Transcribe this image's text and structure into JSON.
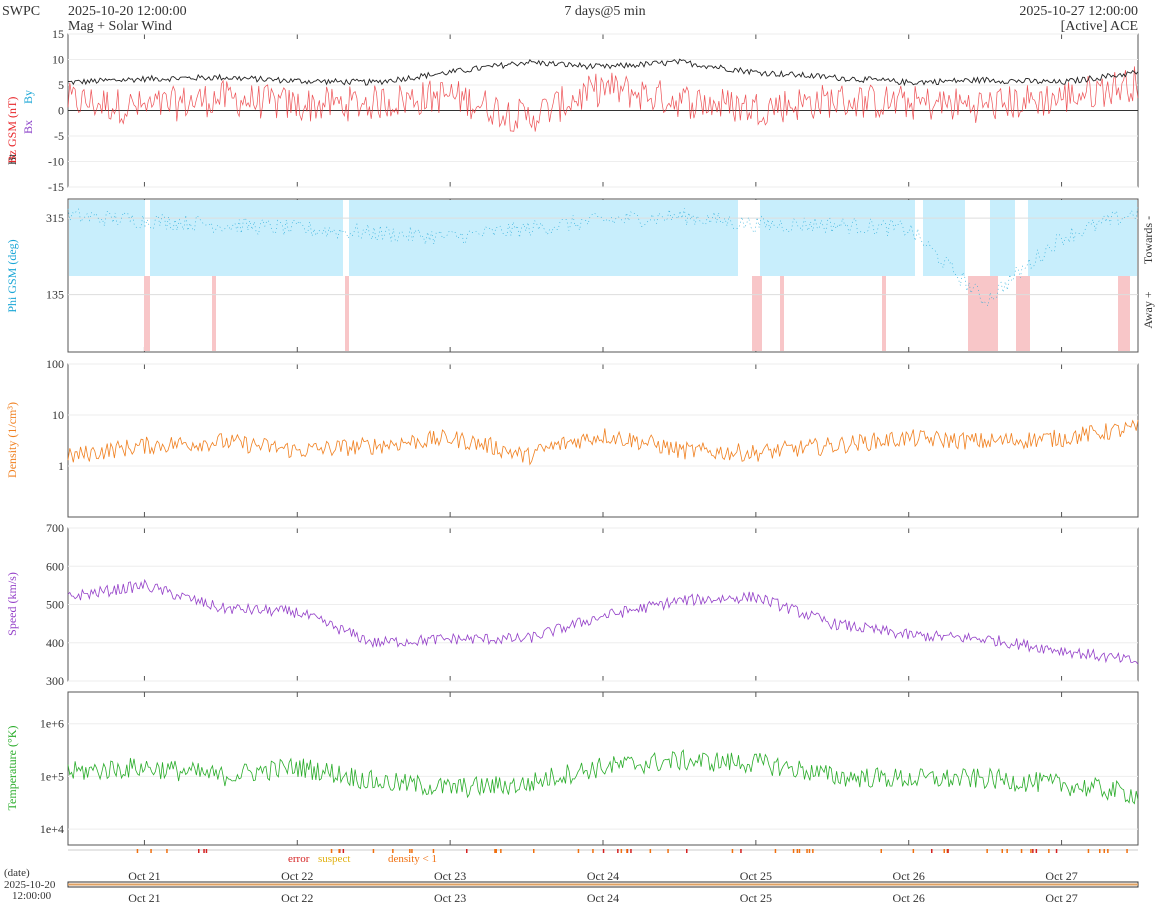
{
  "header": {
    "source": "SWPC",
    "start": "2025-10-20 12:00:00",
    "window": "7 days@5 min",
    "end": "2025-10-27 12:00:00",
    "subtitle": "Mag + Solar Wind",
    "satellite": "[Active] ACE"
  },
  "colors": {
    "bt": "#222222",
    "bz": "#e8262a",
    "by": "#1aa6d6",
    "bx": "#8a3fc8",
    "phi": "#1aa6d6",
    "towards_fill": "#c8eefc",
    "away_fill": "#f8c6c8",
    "density": "#f08020",
    "speed": "#9440c8",
    "temperature": "#2aac2a",
    "error": "#d42020",
    "suspect": "#e0c020",
    "density_lt1": "#f07010"
  },
  "x_axis": {
    "ticks": [
      "Oct 21",
      "Oct 22",
      "Oct 23",
      "Oct 24",
      "Oct 25",
      "Oct 26",
      "Oct 27"
    ],
    "date_label": "(date)",
    "start_date": "2025-10-20",
    "start_time": "12:00:00"
  },
  "legend": {
    "error": "error",
    "suspect": "suspect",
    "density": "density < 1"
  },
  "chart_data": [
    {
      "type": "line",
      "panel": "mag",
      "ylabel_bt": "Bt",
      "ylabel_bz": "Bz GSM (nT)",
      "ylabel_bx": "Bx",
      "ylabel_by": "By",
      "ylim": [
        -15,
        15
      ],
      "yticks": [
        "15",
        "10",
        "5",
        "0",
        "-5",
        "-10",
        "-15"
      ],
      "x_dates": [
        "2025-10-20 12:00",
        "2025-10-21 00:00",
        "2025-10-21 12:00",
        "2025-10-22 00:00",
        "2025-10-22 12:00",
        "2025-10-23 00:00",
        "2025-10-23 12:00",
        "2025-10-24 00:00",
        "2025-10-24 12:00",
        "2025-10-25 00:00",
        "2025-10-25 12:00",
        "2025-10-26 00:00",
        "2025-10-26 12:00",
        "2025-10-27 00:00",
        "2025-10-27 12:00"
      ],
      "series": [
        {
          "name": "Bt",
          "values": [
            5.5,
            6.2,
            6.5,
            5.8,
            5.5,
            7.5,
            9.5,
            8.5,
            9.5,
            7.5,
            6.5,
            5.5,
            6.0,
            5.5,
            7.5
          ]
        },
        {
          "name": "Bz",
          "values": [
            2.0,
            0.5,
            2.5,
            1.0,
            1.5,
            3.0,
            -1.5,
            4.5,
            2.0,
            0.5,
            2.0,
            1.5,
            1.0,
            2.5,
            5.5
          ]
        }
      ]
    },
    {
      "type": "scatter",
      "panel": "phi",
      "ylabel": "Phi GSM (deg)",
      "ylim": [
        0,
        360
      ],
      "yticks": [
        "315",
        "135"
      ],
      "side_labels": [
        "Towards -",
        "Away +"
      ],
      "x_dates": [
        "2025-10-20 12:00",
        "2025-10-21 00:00",
        "2025-10-21 12:00",
        "2025-10-22 00:00",
        "2025-10-22 12:00",
        "2025-10-23 00:00",
        "2025-10-23 12:00",
        "2025-10-24 00:00",
        "2025-10-24 12:00",
        "2025-10-25 00:00",
        "2025-10-25 12:00",
        "2025-10-26 00:00",
        "2025-10-26 12:00",
        "2025-10-27 00:00",
        "2025-10-27 12:00"
      ],
      "series": [
        {
          "name": "Phi",
          "values": [
            320,
            310,
            300,
            290,
            280,
            270,
            290,
            310,
            320,
            300,
            300,
            290,
            120,
            270,
            330
          ]
        }
      ]
    },
    {
      "type": "line",
      "panel": "density",
      "ylabel": "Density (1/cm³)",
      "scale": "log",
      "ylim": [
        0.1,
        100
      ],
      "yticks": [
        "100",
        "10",
        "1"
      ],
      "x_dates": [
        "2025-10-20 12:00",
        "2025-10-21 00:00",
        "2025-10-21 12:00",
        "2025-10-22 00:00",
        "2025-10-22 12:00",
        "2025-10-23 00:00",
        "2025-10-23 12:00",
        "2025-10-24 00:00",
        "2025-10-24 12:00",
        "2025-10-25 00:00",
        "2025-10-25 12:00",
        "2025-10-26 00:00",
        "2025-10-26 12:00",
        "2025-10-27 00:00",
        "2025-10-27 12:00"
      ],
      "series": [
        {
          "name": "Density",
          "values": [
            1.5,
            2.5,
            3.0,
            2.0,
            2.5,
            3.5,
            1.5,
            4.0,
            2.0,
            1.8,
            2.5,
            3.5,
            3.0,
            3.5,
            5.5
          ]
        }
      ]
    },
    {
      "type": "line",
      "panel": "speed",
      "ylabel": "Speed (km/s)",
      "ylim": [
        300,
        700
      ],
      "yticks": [
        "700",
        "600",
        "500",
        "400",
        "300"
      ],
      "x_dates": [
        "2025-10-20 12:00",
        "2025-10-21 00:00",
        "2025-10-21 12:00",
        "2025-10-22 00:00",
        "2025-10-22 12:00",
        "2025-10-23 00:00",
        "2025-10-23 12:00",
        "2025-10-24 00:00",
        "2025-10-24 12:00",
        "2025-10-25 00:00",
        "2025-10-25 12:00",
        "2025-10-26 00:00",
        "2025-10-26 12:00",
        "2025-10-27 00:00",
        "2025-10-27 12:00"
      ],
      "series": [
        {
          "name": "Speed",
          "values": [
            520,
            550,
            490,
            480,
            400,
            410,
            410,
            470,
            510,
            520,
            450,
            420,
            410,
            380,
            350
          ]
        }
      ]
    },
    {
      "type": "line",
      "panel": "temperature",
      "ylabel": "Temperature (°K)",
      "scale": "log",
      "ylim": [
        5000,
        4000000
      ],
      "yticks": [
        "1e+6",
        "1e+5",
        "1e+4"
      ],
      "x_dates": [
        "2025-10-20 12:00",
        "2025-10-21 00:00",
        "2025-10-21 12:00",
        "2025-10-22 00:00",
        "2025-10-22 12:00",
        "2025-10-23 00:00",
        "2025-10-23 12:00",
        "2025-10-24 00:00",
        "2025-10-24 12:00",
        "2025-10-25 00:00",
        "2025-10-25 12:00",
        "2025-10-26 00:00",
        "2025-10-26 12:00",
        "2025-10-27 00:00",
        "2025-10-27 12:00"
      ],
      "series": [
        {
          "name": "Temperature",
          "values": [
            120000,
            150000,
            100000,
            150000,
            80000,
            60000,
            70000,
            150000,
            200000,
            180000,
            100000,
            90000,
            90000,
            70000,
            45000
          ]
        }
      ]
    }
  ]
}
